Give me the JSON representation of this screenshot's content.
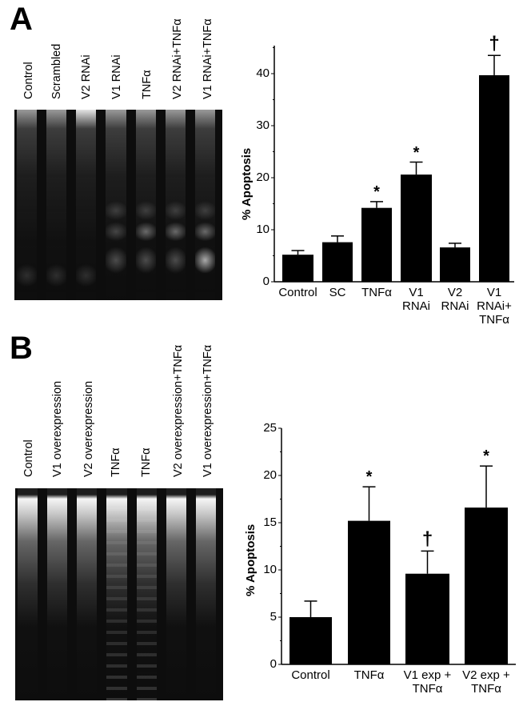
{
  "figure": {
    "panel_a": {
      "letter": "A",
      "gel_lanes": [
        "Control",
        "Scrambled",
        "V2 RNAi",
        "V1 RNAi",
        "TNFα",
        "V2 RNAi+TNFα",
        "V1 RNAi+TNFα"
      ]
    },
    "panel_b": {
      "letter": "B",
      "gel_lanes": [
        "Control",
        "V1 overexpression",
        "V2 overexpression",
        "TNFα",
        "TNFα",
        "V2 overexpression+TNFα",
        "V1 overexpression+TNFα"
      ]
    }
  },
  "chart_data": [
    {
      "type": "bar",
      "panel": "A",
      "title": "",
      "xlabel": "",
      "ylabel": "% Apoptosis",
      "ylim": [
        0,
        45
      ],
      "yticks": [
        0,
        10,
        20,
        30,
        40
      ],
      "categories": [
        "Control",
        "SC",
        "TNFα",
        "V1 RNAi",
        "V2 RNAi",
        "V1 RNAi+ TNFα"
      ],
      "category_lines": [
        [
          "Control"
        ],
        [
          "SC"
        ],
        [
          "TNFα"
        ],
        [
          "V1",
          "RNAi"
        ],
        [
          "V2",
          "RNAi"
        ],
        [
          "V1",
          "RNAi+",
          "TNFα"
        ]
      ],
      "values": [
        5.2,
        7.6,
        14.2,
        20.6,
        6.6,
        39.7
      ],
      "error_upper": [
        6.0,
        8.8,
        15.4,
        23.0,
        7.4,
        43.5
      ],
      "significance": [
        "",
        "",
        "*",
        "*",
        "",
        "†"
      ],
      "grid": false,
      "bar_color": "#000000"
    },
    {
      "type": "bar",
      "panel": "B",
      "title": "",
      "xlabel": "",
      "ylabel": "% Apoptosis",
      "ylim": [
        0,
        25
      ],
      "yticks": [
        0,
        5,
        10,
        15,
        20,
        25
      ],
      "categories": [
        "Control",
        "TNFα",
        "V1 exp + TNFα",
        "V2 exp + TNFα"
      ],
      "category_lines": [
        [
          "Control"
        ],
        [
          "TNFα"
        ],
        [
          "V1 exp +",
          "TNFα"
        ],
        [
          "V2 exp +",
          "TNFα"
        ]
      ],
      "values": [
        5.0,
        15.2,
        9.6,
        16.6
      ],
      "error_upper": [
        6.7,
        18.8,
        12.0,
        21.0
      ],
      "significance": [
        "",
        "*",
        "†",
        "*"
      ],
      "grid": false,
      "bar_color": "#000000"
    }
  ]
}
